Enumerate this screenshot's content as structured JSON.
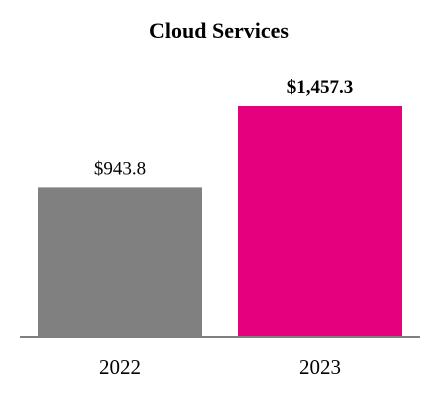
{
  "chart_data": {
    "type": "bar",
    "title": "Cloud Services",
    "categories": [
      "2022",
      "2023"
    ],
    "values": [
      943.8,
      1457.3
    ],
    "value_labels": [
      "$943.8",
      "$1,457.3"
    ],
    "label_bold": [
      false,
      true
    ],
    "colors": [
      "#808080",
      "#e5007e"
    ],
    "axis_color": "#7f7f7f",
    "ylim": [
      0,
      1500
    ],
    "grid": false,
    "legend": "none"
  }
}
